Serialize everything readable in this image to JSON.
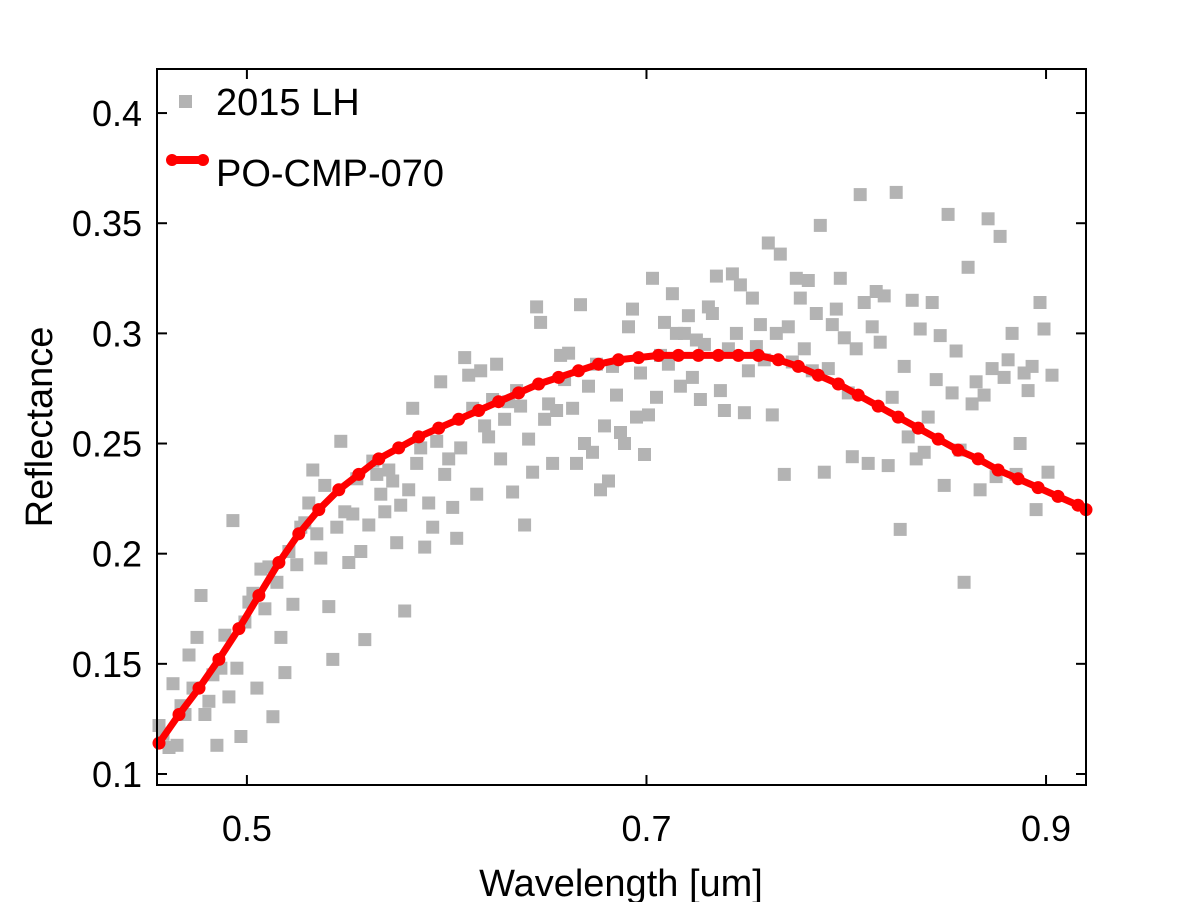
{
  "chart_data": {
    "type": "scatter",
    "title": "",
    "xlabel": "Wavelength [um]",
    "ylabel": "Reflectance",
    "xlim": [
      0.455,
      0.92
    ],
    "ylim": [
      0.095,
      0.42
    ],
    "xticks": [
      0.5,
      0.7,
      0.9
    ],
    "xtick_labels": [
      "0.5",
      "0.7",
      "0.9"
    ],
    "yticks": [
      0.1,
      0.15,
      0.2,
      0.25,
      0.3,
      0.35,
      0.4
    ],
    "ytick_labels": [
      "0.1",
      "0.15",
      "0.2",
      "0.25",
      "0.3",
      "0.35",
      "0.4"
    ],
    "grid": false,
    "legend_position": "top-left",
    "colors": {
      "scatter": "#b3b3b3",
      "line": "#ff0000",
      "axes": "#000000"
    },
    "series": [
      {
        "name": "2015 LH",
        "kind": "scatter",
        "marker": "square",
        "points": [
          [
            0.456,
            0.122
          ],
          [
            0.458,
            0.118
          ],
          [
            0.461,
            0.112
          ],
          [
            0.463,
            0.141
          ],
          [
            0.465,
            0.113
          ],
          [
            0.467,
            0.131
          ],
          [
            0.469,
            0.127
          ],
          [
            0.471,
            0.154
          ],
          [
            0.473,
            0.139
          ],
          [
            0.475,
            0.162
          ],
          [
            0.477,
            0.181
          ],
          [
            0.479,
            0.127
          ],
          [
            0.481,
            0.133
          ],
          [
            0.483,
            0.145
          ],
          [
            0.485,
            0.113
          ],
          [
            0.487,
            0.148
          ],
          [
            0.489,
            0.163
          ],
          [
            0.491,
            0.135
          ],
          [
            0.493,
            0.215
          ],
          [
            0.495,
            0.148
          ],
          [
            0.497,
            0.117
          ],
          [
            0.499,
            0.169
          ],
          [
            0.501,
            0.178
          ],
          [
            0.503,
            0.182
          ],
          [
            0.505,
            0.139
          ],
          [
            0.507,
            0.193
          ],
          [
            0.509,
            0.175
          ],
          [
            0.511,
            0.194
          ],
          [
            0.513,
            0.126
          ],
          [
            0.515,
            0.187
          ],
          [
            0.517,
            0.162
          ],
          [
            0.519,
            0.146
          ],
          [
            0.521,
            0.201
          ],
          [
            0.523,
            0.177
          ],
          [
            0.525,
            0.195
          ],
          [
            0.527,
            0.212
          ],
          [
            0.529,
            0.214
          ],
          [
            0.531,
            0.223
          ],
          [
            0.533,
            0.238
          ],
          [
            0.535,
            0.209
          ],
          [
            0.537,
            0.198
          ],
          [
            0.539,
            0.231
          ],
          [
            0.541,
            0.176
          ],
          [
            0.543,
            0.152
          ],
          [
            0.545,
            0.212
          ],
          [
            0.547,
            0.251
          ],
          [
            0.549,
            0.219
          ],
          [
            0.551,
            0.196
          ],
          [
            0.553,
            0.218
          ],
          [
            0.555,
            0.234
          ],
          [
            0.557,
            0.201
          ],
          [
            0.559,
            0.161
          ],
          [
            0.561,
            0.213
          ],
          [
            0.563,
            0.242
          ],
          [
            0.565,
            0.236
          ],
          [
            0.567,
            0.227
          ],
          [
            0.569,
            0.219
          ],
          [
            0.571,
            0.238
          ],
          [
            0.573,
            0.233
          ],
          [
            0.575,
            0.205
          ],
          [
            0.577,
            0.222
          ],
          [
            0.579,
            0.174
          ],
          [
            0.581,
            0.229
          ],
          [
            0.583,
            0.266
          ],
          [
            0.585,
            0.241
          ],
          [
            0.587,
            0.248
          ],
          [
            0.589,
            0.203
          ],
          [
            0.591,
            0.223
          ],
          [
            0.593,
            0.212
          ],
          [
            0.595,
            0.251
          ],
          [
            0.597,
            0.278
          ],
          [
            0.599,
            0.236
          ],
          [
            0.601,
            0.243
          ],
          [
            0.603,
            0.221
          ],
          [
            0.605,
            0.207
          ],
          [
            0.607,
            0.248
          ],
          [
            0.609,
            0.289
          ],
          [
            0.611,
            0.281
          ],
          [
            0.613,
            0.266
          ],
          [
            0.615,
            0.227
          ],
          [
            0.617,
            0.283
          ],
          [
            0.619,
            0.258
          ],
          [
            0.621,
            0.253
          ],
          [
            0.623,
            0.27
          ],
          [
            0.625,
            0.286
          ],
          [
            0.627,
            0.243
          ],
          [
            0.629,
            0.261
          ],
          [
            0.631,
            0.269
          ],
          [
            0.633,
            0.228
          ],
          [
            0.635,
            0.274
          ],
          [
            0.637,
            0.267
          ],
          [
            0.639,
            0.213
          ],
          [
            0.641,
            0.252
          ],
          [
            0.643,
            0.237
          ],
          [
            0.645,
            0.312
          ],
          [
            0.647,
            0.305
          ],
          [
            0.649,
            0.261
          ],
          [
            0.651,
            0.268
          ],
          [
            0.653,
            0.241
          ],
          [
            0.655,
            0.265
          ],
          [
            0.657,
            0.29
          ],
          [
            0.659,
            0.279
          ],
          [
            0.661,
            0.291
          ],
          [
            0.663,
            0.266
          ],
          [
            0.665,
            0.241
          ],
          [
            0.667,
            0.313
          ],
          [
            0.669,
            0.25
          ],
          [
            0.671,
            0.276
          ],
          [
            0.673,
            0.246
          ],
          [
            0.675,
            0.286
          ],
          [
            0.677,
            0.229
          ],
          [
            0.679,
            0.258
          ],
          [
            0.681,
            0.233
          ],
          [
            0.683,
            0.285
          ],
          [
            0.685,
            0.272
          ],
          [
            0.687,
            0.255
          ],
          [
            0.689,
            0.25
          ],
          [
            0.691,
            0.303
          ],
          [
            0.693,
            0.311
          ],
          [
            0.695,
            0.262
          ],
          [
            0.697,
            0.282
          ],
          [
            0.699,
            0.245
          ],
          [
            0.701,
            0.263
          ],
          [
            0.703,
            0.325
          ],
          [
            0.705,
            0.271
          ],
          [
            0.707,
            0.29
          ],
          [
            0.709,
            0.305
          ],
          [
            0.711,
            0.286
          ],
          [
            0.713,
            0.318
          ],
          [
            0.715,
            0.3
          ],
          [
            0.717,
            0.276
          ],
          [
            0.719,
            0.3
          ],
          [
            0.721,
            0.308
          ],
          [
            0.723,
            0.28
          ],
          [
            0.725,
            0.297
          ],
          [
            0.727,
            0.27
          ],
          [
            0.729,
            0.295
          ],
          [
            0.731,
            0.312
          ],
          [
            0.733,
            0.309
          ],
          [
            0.735,
            0.326
          ],
          [
            0.737,
            0.274
          ],
          [
            0.739,
            0.265
          ],
          [
            0.741,
            0.293
          ],
          [
            0.743,
            0.327
          ],
          [
            0.745,
            0.3
          ],
          [
            0.747,
            0.322
          ],
          [
            0.749,
            0.264
          ],
          [
            0.751,
            0.283
          ],
          [
            0.753,
            0.316
          ],
          [
            0.755,
            0.294
          ],
          [
            0.757,
            0.304
          ],
          [
            0.759,
            0.288
          ],
          [
            0.761,
            0.341
          ],
          [
            0.763,
            0.263
          ],
          [
            0.765,
            0.3
          ],
          [
            0.767,
            0.336
          ],
          [
            0.769,
            0.236
          ],
          [
            0.771,
            0.303
          ],
          [
            0.773,
            0.287
          ],
          [
            0.775,
            0.325
          ],
          [
            0.777,
            0.316
          ],
          [
            0.779,
            0.293
          ],
          [
            0.781,
            0.324
          ],
          [
            0.783,
            0.283
          ],
          [
            0.785,
            0.309
          ],
          [
            0.787,
            0.349
          ],
          [
            0.789,
            0.237
          ],
          [
            0.791,
            0.284
          ],
          [
            0.793,
            0.304
          ],
          [
            0.795,
            0.311
          ],
          [
            0.797,
            0.325
          ],
          [
            0.799,
            0.298
          ],
          [
            0.801,
            0.273
          ],
          [
            0.803,
            0.244
          ],
          [
            0.805,
            0.293
          ],
          [
            0.807,
            0.363
          ],
          [
            0.809,
            0.314
          ],
          [
            0.811,
            0.241
          ],
          [
            0.813,
            0.303
          ],
          [
            0.815,
            0.319
          ],
          [
            0.817,
            0.296
          ],
          [
            0.819,
            0.317
          ],
          [
            0.821,
            0.24
          ],
          [
            0.823,
            0.271
          ],
          [
            0.825,
            0.364
          ],
          [
            0.827,
            0.211
          ],
          [
            0.829,
            0.285
          ],
          [
            0.831,
            0.253
          ],
          [
            0.833,
            0.315
          ],
          [
            0.835,
            0.243
          ],
          [
            0.837,
            0.302
          ],
          [
            0.839,
            0.246
          ],
          [
            0.841,
            0.262
          ],
          [
            0.843,
            0.314
          ],
          [
            0.845,
            0.279
          ],
          [
            0.847,
            0.299
          ],
          [
            0.849,
            0.231
          ],
          [
            0.851,
            0.354
          ],
          [
            0.853,
            0.273
          ],
          [
            0.855,
            0.292
          ],
          [
            0.857,
            0.247
          ],
          [
            0.859,
            0.187
          ],
          [
            0.861,
            0.33
          ],
          [
            0.863,
            0.268
          ],
          [
            0.865,
            0.278
          ],
          [
            0.867,
            0.229
          ],
          [
            0.869,
            0.272
          ],
          [
            0.871,
            0.352
          ],
          [
            0.873,
            0.284
          ],
          [
            0.875,
            0.235
          ],
          [
            0.877,
            0.344
          ],
          [
            0.879,
            0.28
          ],
          [
            0.881,
            0.288
          ],
          [
            0.883,
            0.3
          ],
          [
            0.885,
            0.236
          ],
          [
            0.887,
            0.25
          ],
          [
            0.889,
            0.282
          ],
          [
            0.891,
            0.274
          ],
          [
            0.893,
            0.285
          ],
          [
            0.895,
            0.22
          ],
          [
            0.897,
            0.314
          ],
          [
            0.899,
            0.302
          ],
          [
            0.901,
            0.237
          ],
          [
            0.903,
            0.281
          ]
        ]
      },
      {
        "name": "PO-CMP-070",
        "kind": "line",
        "marker": "circle",
        "points": [
          [
            0.456,
            0.114
          ],
          [
            0.466,
            0.127
          ],
          [
            0.476,
            0.139
          ],
          [
            0.486,
            0.152
          ],
          [
            0.496,
            0.166
          ],
          [
            0.506,
            0.181
          ],
          [
            0.516,
            0.196
          ],
          [
            0.526,
            0.209
          ],
          [
            0.536,
            0.22
          ],
          [
            0.546,
            0.229
          ],
          [
            0.556,
            0.236
          ],
          [
            0.566,
            0.243
          ],
          [
            0.576,
            0.248
          ],
          [
            0.586,
            0.253
          ],
          [
            0.596,
            0.257
          ],
          [
            0.606,
            0.261
          ],
          [
            0.616,
            0.265
          ],
          [
            0.626,
            0.269
          ],
          [
            0.636,
            0.273
          ],
          [
            0.646,
            0.277
          ],
          [
            0.656,
            0.28
          ],
          [
            0.666,
            0.283
          ],
          [
            0.676,
            0.286
          ],
          [
            0.686,
            0.288
          ],
          [
            0.696,
            0.289
          ],
          [
            0.706,
            0.29
          ],
          [
            0.716,
            0.29
          ],
          [
            0.726,
            0.29
          ],
          [
            0.736,
            0.29
          ],
          [
            0.746,
            0.29
          ],
          [
            0.756,
            0.29
          ],
          [
            0.766,
            0.288
          ],
          [
            0.776,
            0.285
          ],
          [
            0.786,
            0.281
          ],
          [
            0.796,
            0.277
          ],
          [
            0.806,
            0.272
          ],
          [
            0.816,
            0.267
          ],
          [
            0.826,
            0.262
          ],
          [
            0.836,
            0.257
          ],
          [
            0.846,
            0.252
          ],
          [
            0.856,
            0.247
          ],
          [
            0.866,
            0.243
          ],
          [
            0.876,
            0.238
          ],
          [
            0.886,
            0.234
          ],
          [
            0.896,
            0.23
          ],
          [
            0.906,
            0.226
          ],
          [
            0.916,
            0.222
          ],
          [
            0.92,
            0.22
          ]
        ]
      }
    ]
  }
}
